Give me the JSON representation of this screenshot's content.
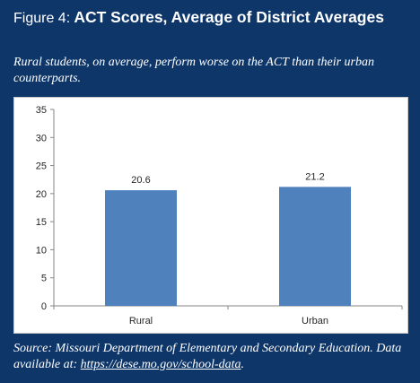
{
  "figure": {
    "label": "Figure 4:",
    "title": "ACT Scores, Average of District Averages",
    "subtitle": "Rural students, on average, perform worse on the ACT than their urban counterparts."
  },
  "chart_data": {
    "type": "bar",
    "categories": [
      "Rural",
      "Urban"
    ],
    "values": [
      20.6,
      21.2
    ],
    "value_labels": [
      "20.6",
      "21.2"
    ],
    "yticks": [
      "0",
      "5",
      "10",
      "15",
      "20",
      "25",
      "30",
      "35"
    ],
    "ylim": [
      0,
      35
    ],
    "grid": false,
    "legend": "none",
    "bar_color": "#4f81bd"
  },
  "source": {
    "prefix": "Source:  Missouri Department of Elementary and Secondary Education. Data available at: ",
    "link": "https://dese.mo.gov/school-data",
    "suffix": "."
  },
  "colors": {
    "background": "#0e3669",
    "bar": "#4f81bd"
  }
}
